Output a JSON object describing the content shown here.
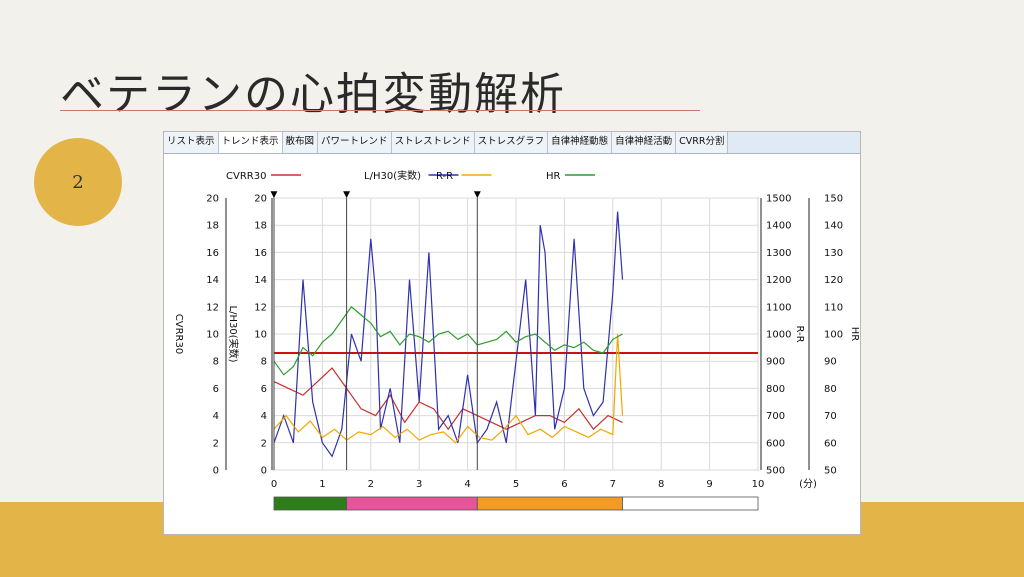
{
  "slide": {
    "title": "ベテランの心拍変動解析",
    "page_number": "2",
    "colors": {
      "accent": "#e3b548",
      "underline": "#c9796a"
    }
  },
  "tabs": [
    {
      "label": "リスト表示",
      "active": false
    },
    {
      "label": "トレンド表示",
      "active": true
    },
    {
      "label": "散布図",
      "active": false
    },
    {
      "label": "パワートレンド",
      "active": false
    },
    {
      "label": "ストレストレンド",
      "active": false
    },
    {
      "label": "ストレスグラフ",
      "active": false
    },
    {
      "label": "自律神経動態",
      "active": false
    },
    {
      "label": "自律神経活動",
      "active": false
    },
    {
      "label": "CVRR分割",
      "active": false
    }
  ],
  "chart_data": {
    "type": "line",
    "xlabel": "(分)",
    "xlim": [
      0,
      10
    ],
    "x_ticks": [
      0,
      1,
      2,
      3,
      4,
      5,
      6,
      7,
      8,
      9,
      10
    ],
    "grid": true,
    "legend_position": "top",
    "axes": {
      "cvrr30": {
        "label": "CVRR30",
        "range": [
          0,
          20
        ],
        "ticks": [
          0,
          2,
          4,
          6,
          8,
          10,
          12,
          14,
          16,
          18,
          20
        ]
      },
      "lh30": {
        "label": "L/H30(実数)",
        "range": [
          0,
          20
        ],
        "ticks": [
          0,
          2,
          4,
          6,
          8,
          10,
          12,
          14,
          16,
          18,
          20
        ]
      },
      "rr": {
        "label": "R-R",
        "range": [
          500,
          1500
        ],
        "ticks": [
          500,
          600,
          700,
          800,
          900,
          1000,
          1100,
          1200,
          1300,
          1400,
          1500
        ]
      },
      "hr": {
        "label": "HR",
        "range": [
          50,
          150
        ],
        "ticks": [
          50,
          60,
          70,
          80,
          90,
          100,
          110,
          120,
          130,
          140,
          150
        ]
      }
    },
    "threshold": {
      "axis": "cvrr30",
      "value": 8.6,
      "color": "#cc1111"
    },
    "markers": [
      {
        "x": 0,
        "label": "▼"
      },
      {
        "x": 1.5,
        "label": "▼"
      },
      {
        "x": 4.2,
        "label": "▼"
      }
    ],
    "segments": [
      {
        "from": 0,
        "to": 1.5,
        "color": "#2e7d1b"
      },
      {
        "from": 1.5,
        "to": 4.2,
        "color": "#e8549c"
      },
      {
        "from": 4.2,
        "to": 7.2,
        "color": "#f39b25"
      },
      {
        "from": 7.2,
        "to": 10,
        "color": "#ffffff"
      }
    ],
    "series": [
      {
        "name": "CVRR30",
        "axis": "cvrr30",
        "color": "#c73030",
        "x": [
          0,
          0.3,
          0.6,
          0.9,
          1.2,
          1.5,
          1.8,
          2.1,
          2.4,
          2.7,
          3.0,
          3.3,
          3.6,
          3.9,
          4.2,
          4.5,
          4.8,
          5.1,
          5.4,
          5.7,
          6.0,
          6.3,
          6.6,
          6.9,
          7.2
        ],
        "y": [
          6.5,
          6,
          5.5,
          6.5,
          7.5,
          6,
          4.5,
          4,
          5.5,
          3.5,
          5,
          4.5,
          3,
          4.5,
          4,
          3.5,
          3,
          3.5,
          4,
          4,
          3.5,
          4.5,
          3,
          4,
          3.5
        ]
      },
      {
        "name": "L/H30(実数)",
        "axis": "lh30",
        "color": "#3030b0",
        "x": [
          0,
          0.2,
          0.4,
          0.6,
          0.8,
          1.0,
          1.2,
          1.4,
          1.6,
          1.8,
          2.0,
          2.1,
          2.2,
          2.4,
          2.6,
          2.8,
          3.0,
          3.2,
          3.4,
          3.6,
          3.8,
          4.0,
          4.2,
          4.4,
          4.6,
          4.8,
          5.0,
          5.2,
          5.4,
          5.5,
          5.6,
          5.8,
          6.0,
          6.2,
          6.4,
          6.6,
          6.8,
          7.0,
          7.1,
          7.2
        ],
        "y": [
          2,
          4,
          2,
          14,
          5,
          2,
          1,
          3,
          10,
          8,
          17,
          13,
          3,
          6,
          2,
          14,
          5,
          16,
          3,
          4,
          2,
          7,
          2,
          3,
          5,
          2,
          8,
          14,
          4,
          18,
          16,
          3,
          6,
          17,
          6,
          4,
          5,
          13,
          19,
          14
        ]
      },
      {
        "name": "R-R",
        "axis": "rr",
        "color": "#f0a800",
        "x": [
          0,
          0.25,
          0.5,
          0.75,
          1.0,
          1.25,
          1.5,
          1.75,
          2.0,
          2.25,
          2.5,
          2.75,
          3.0,
          3.25,
          3.5,
          3.75,
          4.0,
          4.25,
          4.5,
          4.75,
          5.0,
          5.25,
          5.5,
          5.75,
          6.0,
          6.25,
          6.5,
          6.75,
          7.0,
          7.1,
          7.2
        ],
        "y": [
          650,
          700,
          640,
          680,
          620,
          650,
          610,
          640,
          630,
          660,
          620,
          650,
          610,
          630,
          640,
          600,
          660,
          620,
          610,
          650,
          700,
          630,
          650,
          620,
          660,
          640,
          620,
          650,
          630,
          1000,
          700
        ]
      },
      {
        "name": "HR",
        "axis": "hr",
        "color": "#2f9b2f",
        "x": [
          0,
          0.2,
          0.4,
          0.6,
          0.8,
          1.0,
          1.2,
          1.4,
          1.6,
          1.8,
          2.0,
          2.2,
          2.4,
          2.6,
          2.8,
          3.0,
          3.2,
          3.4,
          3.6,
          3.8,
          4.0,
          4.2,
          4.4,
          4.6,
          4.8,
          5.0,
          5.2,
          5.4,
          5.6,
          5.8,
          6.0,
          6.2,
          6.4,
          6.6,
          6.8,
          7.0,
          7.2
        ],
        "y": [
          90,
          85,
          88,
          95,
          92,
          97,
          100,
          105,
          110,
          107,
          104,
          99,
          101,
          96,
          100,
          99,
          97,
          100,
          101,
          98,
          100,
          96,
          97,
          98,
          101,
          97,
          99,
          100,
          97,
          94,
          96,
          95,
          97,
          94,
          93,
          98,
          100
        ]
      }
    ]
  }
}
